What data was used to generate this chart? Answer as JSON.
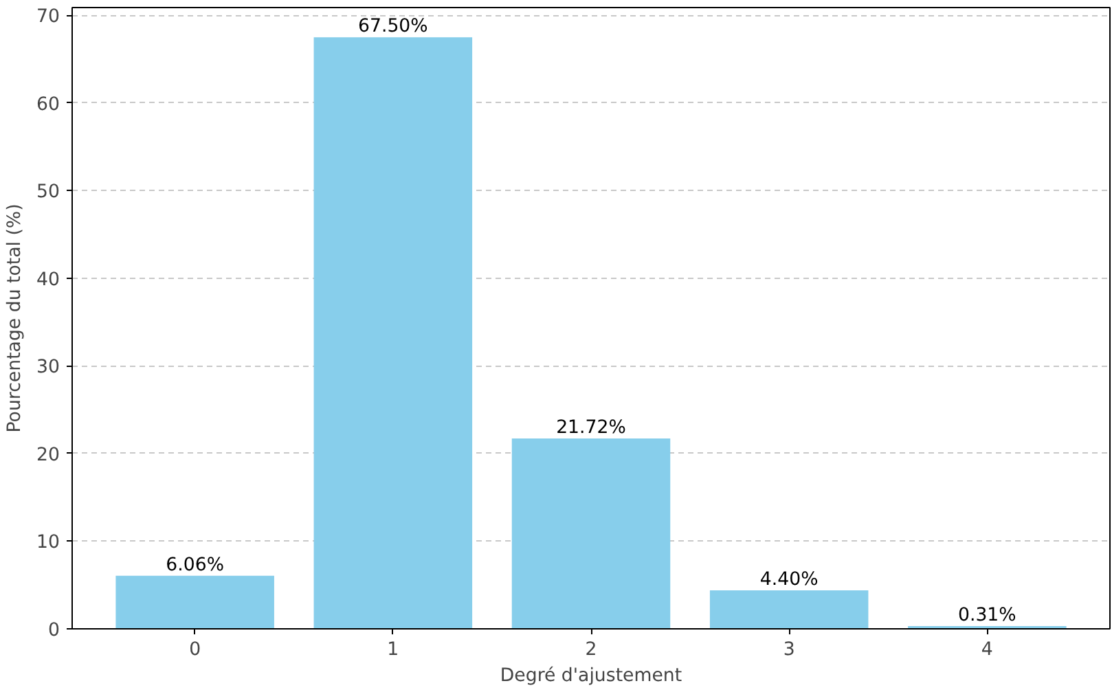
{
  "chart_data": {
    "type": "bar",
    "xlabel": "Degré d'ajustement",
    "ylabel": "Pourcentage du total (%)",
    "categories": [
      "0",
      "1",
      "2",
      "3",
      "4"
    ],
    "values": [
      6.06,
      67.5,
      21.72,
      4.4,
      0.31
    ],
    "value_labels": [
      "6.06%",
      "67.50%",
      "21.72%",
      "4.40%",
      "0.31%"
    ],
    "color": "#87ceeb",
    "ylim": [
      0,
      70.9
    ],
    "yticks": [
      0,
      10,
      20,
      30,
      40,
      50,
      60,
      70
    ],
    "grid": "y"
  }
}
